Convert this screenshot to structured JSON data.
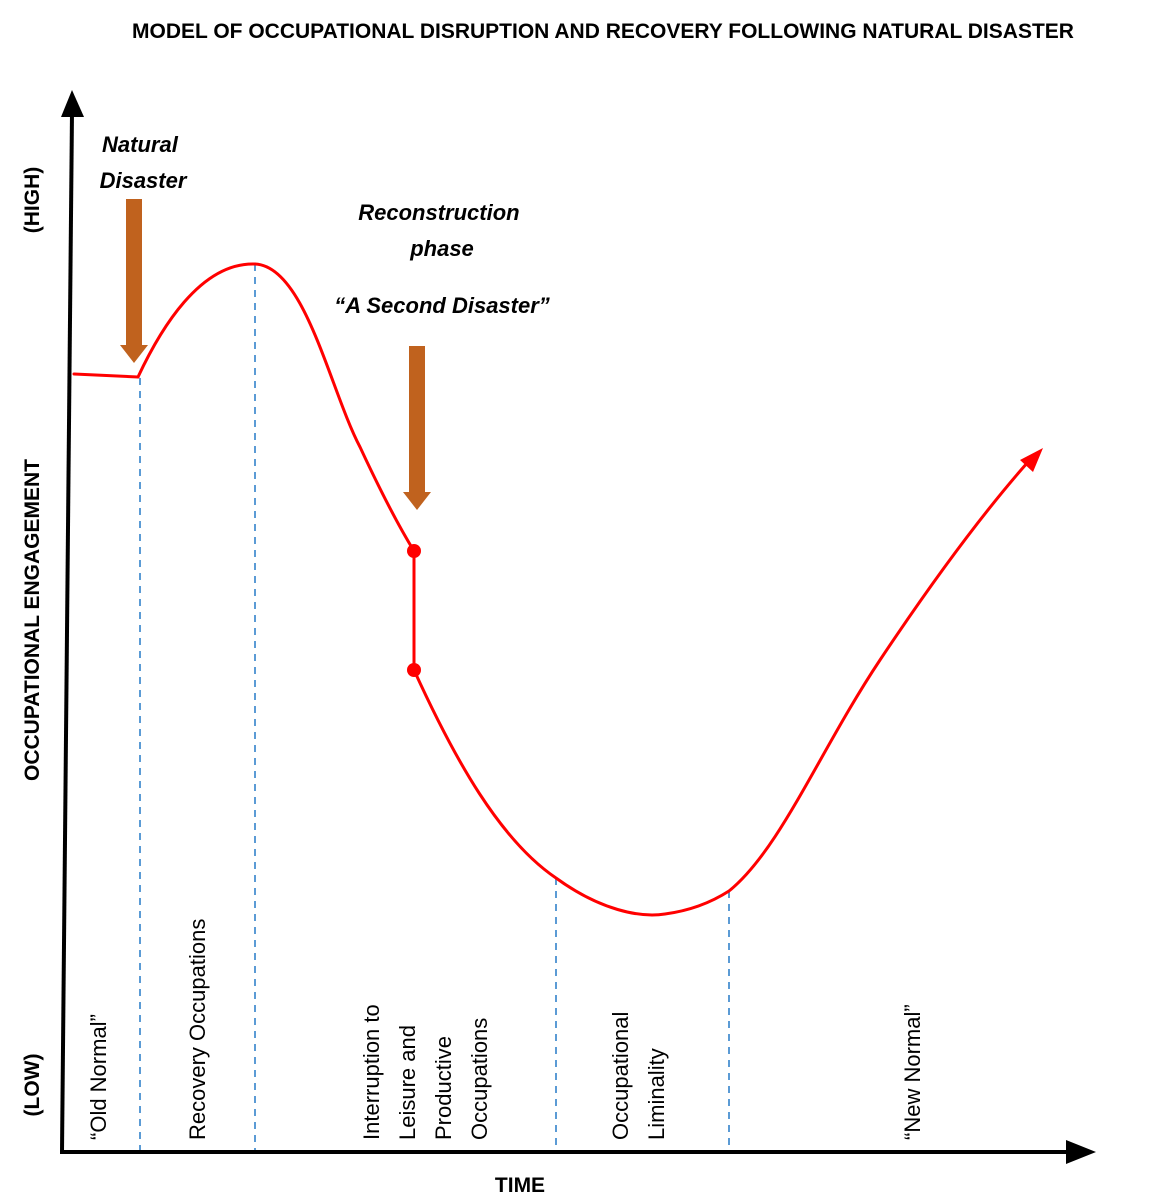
{
  "title": "MODEL OF OCCUPATIONAL DISRUPTION AND RECOVERY FOLLOWING NATURAL DISASTER",
  "axes": {
    "y_label": "OCCUPATIONAL ENGAGEMENT",
    "y_high": "(HIGH)",
    "y_low": "(LOW)",
    "x_label": "TIME"
  },
  "events": {
    "natural_disaster": [
      "Natural",
      "Disaster"
    ],
    "reconstruction": [
      "Reconstruction",
      "phase"
    ],
    "second_disaster": "“A Second Disaster”"
  },
  "phases": {
    "old_normal": [
      "“Old Normal”"
    ],
    "recovery": [
      "Recovery Occupations"
    ],
    "interruption": [
      "Interruption to",
      "Leisure and",
      "Productive",
      "Occupations"
    ],
    "liminality": [
      "Occupational",
      "Liminality"
    ],
    "new_normal": [
      "“New Normal”"
    ]
  },
  "colors": {
    "curve": "#ff0000",
    "event_arrow": "#c0621e",
    "phase_divider": "#5b9bd5",
    "axis": "#000000"
  }
}
